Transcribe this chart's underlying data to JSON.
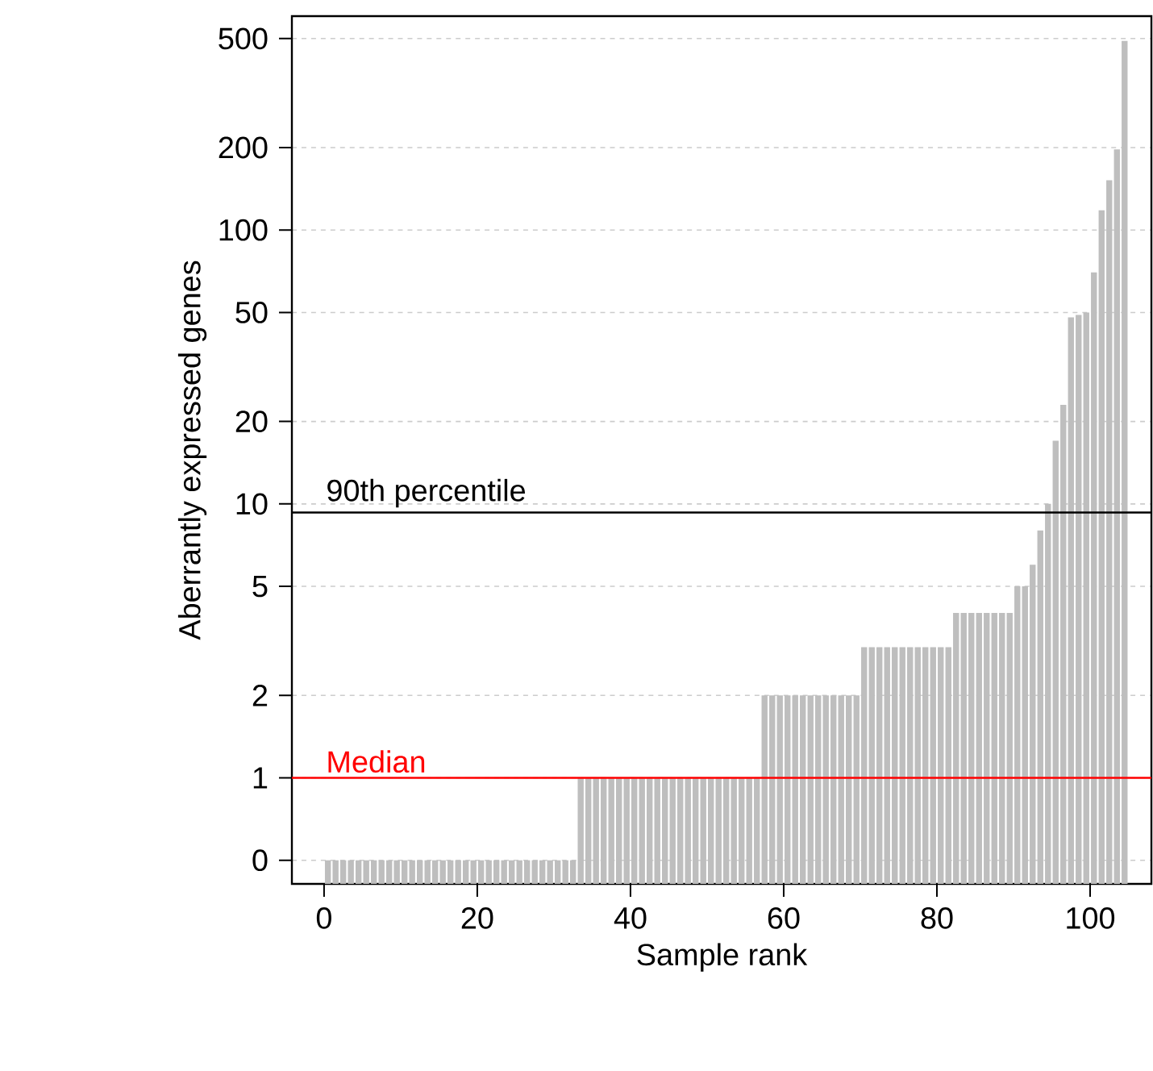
{
  "chart_data": {
    "type": "bar",
    "xlabel": "Sample rank",
    "ylabel": "Aberrantly expressed genes",
    "x": [
      0.5,
      1.5,
      2.5,
      3.5,
      4.5,
      5.5,
      6.5,
      7.5,
      8.5,
      9.5,
      10.5,
      11.5,
      12.5,
      13.5,
      14.5,
      15.5,
      16.5,
      17.5,
      18.5,
      19.5,
      20.5,
      21.5,
      22.5,
      23.5,
      24.5,
      25.5,
      26.5,
      27.5,
      28.5,
      29.5,
      30.5,
      31.5,
      32.5,
      33.5,
      34.5,
      35.5,
      36.5,
      37.5,
      38.5,
      39.5,
      40.5,
      41.5,
      42.5,
      43.5,
      44.5,
      45.5,
      46.5,
      47.5,
      48.5,
      49.5,
      50.5,
      51.5,
      52.5,
      53.5,
      54.5,
      55.5,
      56.5,
      57.5,
      58.5,
      59.5,
      60.5,
      61.5,
      62.5,
      63.5,
      64.5,
      65.5,
      66.5,
      67.5,
      68.5,
      69.5,
      70.5,
      71.5,
      72.5,
      73.5,
      74.5,
      75.5,
      76.5,
      77.5,
      78.5,
      79.5,
      80.5,
      81.5,
      82.5,
      83.5,
      84.5,
      85.5,
      86.5,
      87.5,
      88.5,
      89.5,
      90.5,
      91.5,
      92.5,
      93.5,
      94.5,
      95.5,
      96.5,
      97.5,
      98.5,
      99.5,
      100.5,
      101.5,
      102.5,
      103.5,
      104.5
    ],
    "values": [
      0.5,
      0.5,
      0.5,
      0.5,
      0.5,
      0.5,
      0.5,
      0.5,
      0.5,
      0.5,
      0.5,
      0.5,
      0.5,
      0.5,
      0.5,
      0.5,
      0.5,
      0.5,
      0.5,
      0.5,
      0.5,
      0.5,
      0.5,
      0.5,
      0.5,
      0.5,
      0.5,
      0.5,
      0.5,
      0.5,
      0.5,
      0.5,
      0.5,
      1,
      1,
      1,
      1,
      1,
      1,
      1,
      1,
      1,
      1,
      1,
      1,
      1,
      1,
      1,
      1,
      1,
      1,
      1,
      1,
      1,
      1,
      1,
      1,
      2,
      2,
      2,
      2,
      2,
      2,
      2,
      2,
      2,
      2,
      2,
      2,
      2,
      3,
      3,
      3,
      3,
      3,
      3,
      3,
      3,
      3,
      3,
      3,
      3,
      4,
      4,
      4,
      4,
      4,
      4,
      4,
      4,
      5,
      5,
      6,
      8,
      10,
      17,
      23,
      48,
      49,
      50,
      70,
      118,
      152,
      197,
      490
    ],
    "color": "#bebebe",
    "log": "y",
    "xlim": [
      -4.2,
      108
    ],
    "xticks": [
      0,
      20,
      40,
      60,
      80,
      100
    ],
    "ylim": [
      0.41,
      604
    ],
    "yticks": [
      {
        "value": 0.5,
        "label": "0"
      },
      1,
      2,
      5,
      10,
      20,
      50,
      100,
      200,
      500
    ],
    "grid": "y",
    "ref_lines": [
      {
        "axis": "y",
        "value": 1,
        "label": "Median",
        "color": "#ff0000"
      },
      {
        "axis": "y",
        "value": 9.3,
        "label": "90th percentile",
        "color": "#000000"
      }
    ]
  }
}
